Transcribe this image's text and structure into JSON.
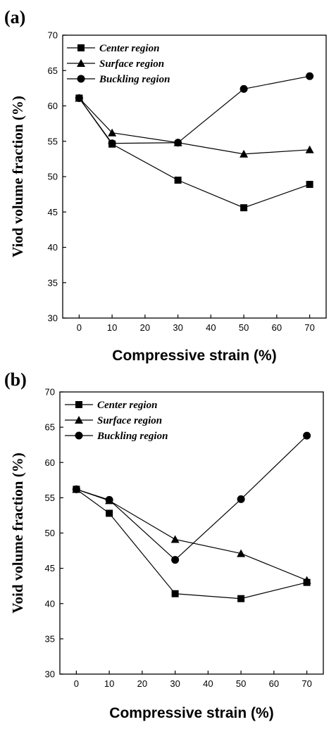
{
  "chart_data": [
    {
      "panel_label": "(a)",
      "type": "line",
      "xlabel": "Compressive strain (%)",
      "ylabel": "Viod volume fraction (%)",
      "xlim": [
        -5,
        75
      ],
      "ylim": [
        30,
        70
      ],
      "xticks": [
        0,
        10,
        20,
        30,
        40,
        50,
        60,
        70
      ],
      "yticks": [
        30,
        35,
        40,
        45,
        50,
        55,
        60,
        65,
        70
      ],
      "legend_position": "top-left",
      "grid": false,
      "x": [
        0,
        10,
        30,
        50,
        70
      ],
      "series": [
        {
          "name": "Center region",
          "marker": "square",
          "values": [
            61.1,
            54.6,
            49.5,
            45.6,
            48.9
          ]
        },
        {
          "name": "Surface region",
          "marker": "triangle",
          "values": [
            61.1,
            56.2,
            54.8,
            53.2,
            53.8
          ]
        },
        {
          "name": "Buckling region",
          "marker": "circle",
          "values": [
            61.1,
            54.7,
            54.8,
            62.4,
            64.2
          ]
        }
      ]
    },
    {
      "panel_label": "(b)",
      "type": "line",
      "xlabel": "Compressive strain (%)",
      "ylabel": "Void volume fraction (%)",
      "xlim": [
        -5,
        75
      ],
      "ylim": [
        30,
        70
      ],
      "xticks": [
        0,
        10,
        20,
        30,
        40,
        50,
        60,
        70
      ],
      "yticks": [
        30,
        35,
        40,
        45,
        50,
        55,
        60,
        65,
        70
      ],
      "legend_position": "top-left",
      "grid": false,
      "x": [
        0,
        10,
        30,
        50,
        70
      ],
      "series": [
        {
          "name": "Center region",
          "marker": "square",
          "values": [
            56.2,
            52.8,
            41.4,
            40.7,
            43.0
          ]
        },
        {
          "name": "Surface region",
          "marker": "triangle",
          "values": [
            56.2,
            54.6,
            49.1,
            47.1,
            43.3
          ]
        },
        {
          "name": "Buckling region",
          "marker": "circle",
          "values": [
            56.2,
            54.7,
            46.2,
            54.8,
            63.8
          ]
        }
      ]
    }
  ]
}
